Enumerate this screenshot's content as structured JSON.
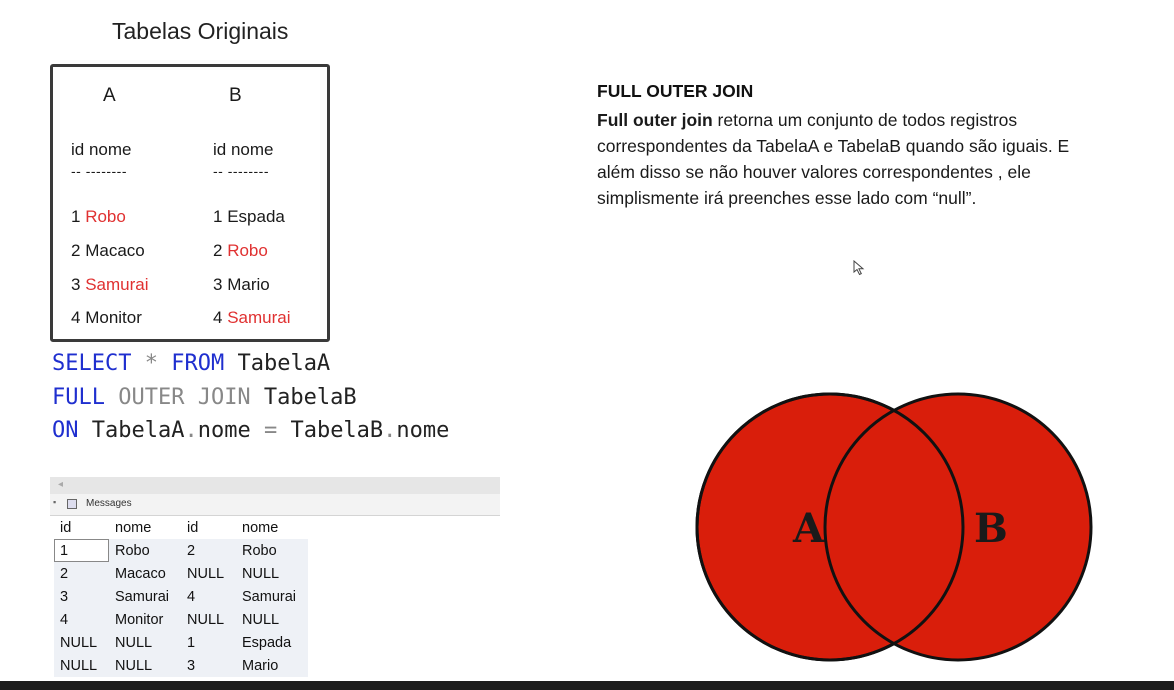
{
  "original_tables": {
    "title": "Tabelas Originais",
    "table_a": {
      "letter": "A",
      "header": "id nome",
      "separator": "-- --------",
      "rows": [
        {
          "id": "1",
          "nome": "Robo"
        },
        {
          "id": "2",
          "nome": "Macaco"
        },
        {
          "id": "3",
          "nome": "Samurai"
        },
        {
          "id": "4",
          "nome": "Monitor"
        }
      ]
    },
    "table_b": {
      "letter": "B",
      "header": "id nome",
      "separator": "-- --------",
      "rows": [
        {
          "id": "1",
          "nome": "Espada"
        },
        {
          "id": "2",
          "nome": "Robo"
        },
        {
          "id": "3",
          "nome": "Mario"
        },
        {
          "id": "4",
          "nome": "Samurai"
        }
      ]
    },
    "highlight_color": "#e03131"
  },
  "sql": {
    "line1": {
      "kw1": "SELECT",
      "star": " * ",
      "kw2": "FROM",
      "table": " TabelaA"
    },
    "line2": {
      "kw": "FULL",
      "kw_gray": " OUTER JOIN",
      "table": " TabelaB"
    },
    "line3": {
      "kw": "ON",
      "left": " TabelaA",
      "dot1": ".",
      "col1": "nome",
      "eq": " = ",
      "right": "TabelaB",
      "dot2": ".",
      "col2": "nome"
    },
    "keyword_color": "#1f2fcf"
  },
  "results": {
    "tab_label": "Messages",
    "columns": [
      "id",
      "nome",
      "id",
      "nome"
    ],
    "rows": [
      [
        "1",
        "Robo",
        "2",
        "Robo"
      ],
      [
        "2",
        "Macaco",
        "NULL",
        "NULL"
      ],
      [
        "3",
        "Samurai",
        "4",
        "Samurai"
      ],
      [
        "4",
        "Monitor",
        "NULL",
        "NULL"
      ],
      [
        "NULL",
        "NULL",
        "1",
        "Espada"
      ],
      [
        "NULL",
        "NULL",
        "3",
        "Mario"
      ]
    ]
  },
  "explanation": {
    "heading": "FULL OUTER JOIN",
    "bold_lead": "Full outer join",
    "line1_rest": " retorna um conjunto de todos registros",
    "line2": "correspondentes da TabelaA e TabelaB quando são iguais. E",
    "line3": "além disso se não houver valores correspondentes , ele",
    "line4": "simplismente irá preenches esse lado com “null”."
  },
  "venn": {
    "label_a": "A",
    "label_b": "B",
    "fill_color": "#d91e0b",
    "stroke_color": "#111111"
  }
}
